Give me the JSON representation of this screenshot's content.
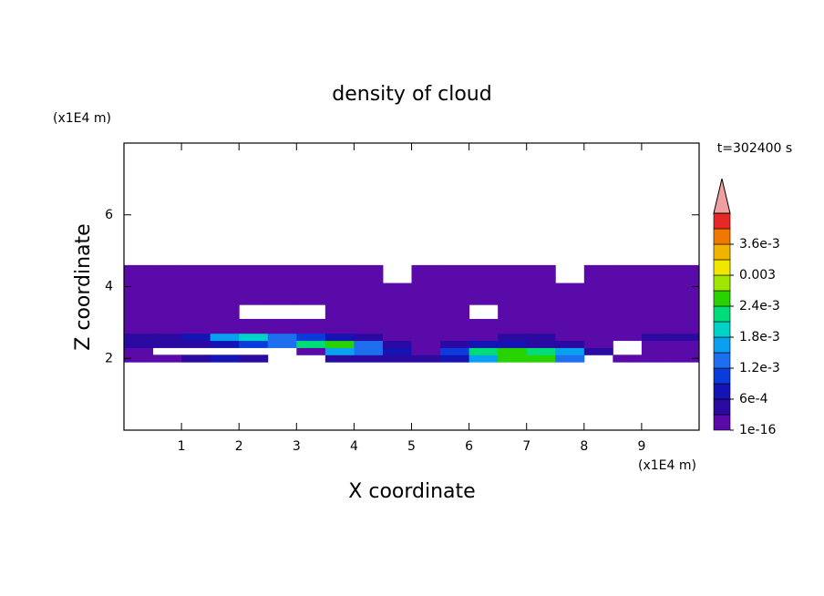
{
  "chart_data": {
    "type": "contour",
    "title": "density of cloud",
    "xlabel": "X coordinate",
    "ylabel": "Z coordinate",
    "x_unit": "(x1E4 m)",
    "y_unit": "(x1E4 m)",
    "annotation": "t=302400 s",
    "xlim": [
      0,
      10
    ],
    "ylim": [
      0,
      8
    ],
    "xticks": [
      1,
      2,
      3,
      4,
      5,
      6,
      7,
      8,
      9
    ],
    "yticks": [
      2,
      4,
      6
    ],
    "x_edges": [
      0,
      0.5,
      1,
      1.5,
      2,
      2.5,
      3,
      3.5,
      4,
      4.5,
      5,
      5.5,
      6,
      6.5,
      7,
      7.5,
      8,
      8.5,
      9,
      9.5,
      10
    ],
    "z_edges": [
      1.9,
      2.1,
      2.3,
      2.5,
      2.7,
      3.1,
      3.5,
      4.1,
      4.6
    ],
    "values": [
      [
        0.0001,
        0.0002,
        0.0004,
        0.0006,
        0.0005,
        null,
        null,
        0.0003,
        0.0004,
        0.0003,
        0.0004,
        0.0006,
        0.0015,
        0.0025,
        0.0025,
        0.0012,
        null,
        0.0001,
        0.0001,
        0.0002
      ],
      [
        0.0001,
        null,
        null,
        null,
        null,
        null,
        0.0002,
        0.0015,
        0.0012,
        0.0006,
        0.0002,
        0.001,
        0.0021,
        0.0024,
        0.0022,
        0.0015,
        0.0003,
        null,
        0.0001,
        0.0001
      ],
      [
        0.0003,
        0.0004,
        0.0005,
        0.0008,
        0.001,
        0.0014,
        0.0022,
        0.0026,
        0.0012,
        0.0004,
        0.0002,
        0.0003,
        0.0006,
        0.0008,
        0.0005,
        0.0003,
        0.0002,
        null,
        0.0001,
        0.0002
      ],
      [
        0.0004,
        0.0005,
        0.0008,
        0.0015,
        0.0018,
        0.0012,
        0.0009,
        0.0006,
        0.0003,
        0.0002,
        0.0001,
        0.0001,
        0.0002,
        0.0003,
        0.0003,
        0.0002,
        0.0002,
        0.0002,
        0.0003,
        0.0003
      ],
      [
        0.0002,
        0.0002,
        0.0002,
        0.0002,
        0.0001,
        0.0001,
        0.0001,
        0.0001,
        0.0001,
        0.0001,
        0.0001,
        0.0001,
        0.0001,
        0.0001,
        0.0001,
        0.0001,
        0.0001,
        0.0002,
        0.0002,
        0.0002
      ],
      [
        0.0001,
        0.0001,
        0.0001,
        0.0001,
        null,
        null,
        null,
        0.0001,
        0.0001,
        0.0001,
        0.0001,
        0.0001,
        null,
        0.0001,
        0.0001,
        0.0001,
        0.0001,
        0.0001,
        0.0001,
        0.0001
      ],
      [
        0.0002,
        0.0001,
        0.0001,
        0.0001,
        0.0001,
        0.0001,
        0.0001,
        0.0001,
        0.0001,
        0.0001,
        0.0001,
        0.0001,
        0.0001,
        0.0001,
        0.0001,
        0.0001,
        0.0001,
        0.0001,
        0.0002,
        0.0002
      ],
      [
        0.0001,
        0.0001,
        0.0001,
        0.0001,
        0.0001,
        0.0001,
        0.0001,
        0.0001,
        0.0001,
        null,
        0.0001,
        0.0001,
        0.0001,
        0.0001,
        0.0001,
        null,
        0.0001,
        0.0001,
        0.0001,
        0.0001
      ]
    ],
    "levels": [
      1e-16,
      0.0003,
      0.0006,
      0.0009,
      0.0012,
      0.0015,
      0.0018,
      0.0021,
      0.0024,
      0.0027,
      0.003,
      0.0033,
      0.0036,
      0.0039,
      0.0042
    ],
    "colors": [
      "#5a0aa8",
      "#2a0aa0",
      "#1414b4",
      "#0a3cdc",
      "#1e6ef0",
      "#0aa0f0",
      "#00d2c8",
      "#00dc78",
      "#28d200",
      "#a0e600",
      "#f0e600",
      "#f0b400",
      "#f07800",
      "#e62828"
    ],
    "extend_color": "#f0a0a0",
    "cbar_ticks": [
      1e-16,
      {
        "value": 0.0006,
        "label": "6e-4"
      },
      {
        "value": 0.0012,
        "label": "1.2e-3"
      },
      {
        "value": 0.0018,
        "label": "1.8e-3"
      },
      {
        "value": 0.0024,
        "label": "2.4e-3"
      },
      0.003,
      {
        "value": 0.0036,
        "label": "3.6e-3"
      }
    ]
  }
}
